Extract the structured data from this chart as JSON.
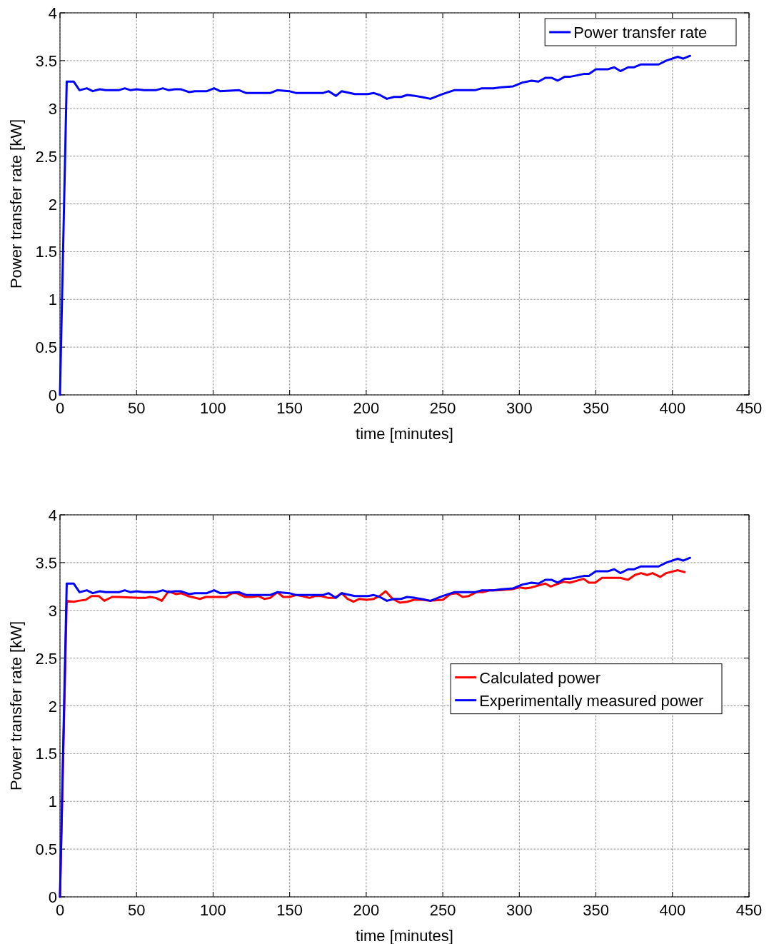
{
  "chart_data": [
    {
      "type": "line",
      "xlabel": "time [minutes]",
      "ylabel": "Power transfer rate [kW]",
      "xlim": [
        0,
        450
      ],
      "ylim": [
        0,
        4
      ],
      "xticks": [
        0,
        50,
        100,
        150,
        200,
        250,
        300,
        350,
        400,
        450
      ],
      "yticks": [
        0,
        0.5,
        1,
        1.5,
        2,
        2.5,
        3,
        3.5,
        4
      ],
      "grid": true,
      "legend": "top right",
      "line_style": "solid",
      "series": [
        {
          "name": "Power transfer rate",
          "color": "#0000ff",
          "x": [
            0,
            4.4,
            9,
            12.8,
            17.5,
            21.4,
            26,
            29.9,
            38.4,
            42.3,
            46.2,
            50,
            54.8,
            62.6,
            67.2,
            71.1,
            75,
            78.9,
            84.4,
            88.2,
            96,
            100.7,
            104.6,
            117,
            121.7,
            137.2,
            141.9,
            149.7,
            154.4,
            159,
            171.6,
            175.5,
            180.2,
            184,
            192.6,
            201.1,
            205,
            208.9,
            213.5,
            218.2,
            222.8,
            226.7,
            232,
            236,
            242,
            250,
            257.5,
            271,
            275.5,
            283,
            288,
            296,
            302,
            308,
            312.5,
            317,
            321,
            325,
            329.5,
            333,
            342,
            345.5,
            350,
            358,
            362,
            366,
            371,
            375,
            379.5,
            391,
            396,
            403.5,
            407,
            411.5
          ],
          "values": [
            0,
            3.28,
            3.28,
            3.19,
            3.21,
            3.18,
            3.2,
            3.19,
            3.19,
            3.21,
            3.19,
            3.2,
            3.19,
            3.19,
            3.21,
            3.19,
            3.2,
            3.2,
            3.17,
            3.18,
            3.18,
            3.21,
            3.18,
            3.19,
            3.16,
            3.16,
            3.19,
            3.18,
            3.16,
            3.16,
            3.16,
            3.18,
            3.13,
            3.18,
            3.15,
            3.15,
            3.16,
            3.14,
            3.1,
            3.12,
            3.12,
            3.14,
            3.13,
            3.12,
            3.1,
            3.15,
            3.19,
            3.19,
            3.21,
            3.21,
            3.22,
            3.23,
            3.27,
            3.29,
            3.28,
            3.32,
            3.32,
            3.29,
            3.33,
            3.33,
            3.36,
            3.36,
            3.41,
            3.41,
            3.43,
            3.39,
            3.43,
            3.43,
            3.46,
            3.46,
            3.5,
            3.54,
            3.52,
            3.55
          ]
        }
      ]
    },
    {
      "type": "line",
      "xlabel": "time [minutes]",
      "ylabel": "Power transfer rate [kW]",
      "xlim": [
        0,
        450
      ],
      "ylim": [
        0,
        4
      ],
      "xticks": [
        0,
        50,
        100,
        150,
        200,
        250,
        300,
        350,
        400,
        450
      ],
      "yticks": [
        0,
        0.5,
        1,
        1.5,
        2,
        2.5,
        3,
        3.5,
        4
      ],
      "grid": true,
      "legend": "right",
      "line_style": "solid",
      "series": [
        {
          "name": "Calculated power",
          "color": "#ff0000",
          "x": [
            0,
            4.4,
            9,
            12,
            16.8,
            20.7,
            25.3,
            29,
            34,
            38.6,
            51,
            55.7,
            58.8,
            62.7,
            66.5,
            70.9,
            75.9,
            79,
            83.6,
            91.4,
            95.3,
            103.8,
            108.5,
            112.4,
            115.5,
            120.9,
            125.6,
            129.5,
            133.4,
            137.3,
            142,
            145.8,
            149.7,
            154.4,
            158.3,
            163,
            166.8,
            170.7,
            175.4,
            179.3,
            184,
            187.8,
            191.7,
            195.6,
            200.3,
            205,
            208.8,
            212.7,
            217.3,
            222,
            226.7,
            231.3,
            237,
            241.5,
            250,
            255,
            259,
            263,
            267,
            272,
            276,
            281,
            285,
            295,
            300.5,
            304,
            308,
            317,
            320.5,
            329,
            333,
            342,
            345.5,
            349.5,
            354,
            362,
            366,
            371,
            375.5,
            379.5,
            383.5,
            387,
            392,
            396,
            403.5,
            408
          ],
          "values": [
            0,
            3.1,
            3.09,
            3.1,
            3.11,
            3.15,
            3.15,
            3.1,
            3.14,
            3.14,
            3.13,
            3.13,
            3.14,
            3.13,
            3.1,
            3.2,
            3.17,
            3.18,
            3.15,
            3.12,
            3.14,
            3.14,
            3.14,
            3.18,
            3.18,
            3.14,
            3.14,
            3.15,
            3.12,
            3.13,
            3.19,
            3.14,
            3.14,
            3.16,
            3.15,
            3.13,
            3.15,
            3.15,
            3.13,
            3.13,
            3.18,
            3.12,
            3.09,
            3.12,
            3.11,
            3.12,
            3.15,
            3.2,
            3.12,
            3.08,
            3.09,
            3.11,
            3.11,
            3.1,
            3.11,
            3.17,
            3.18,
            3.14,
            3.15,
            3.19,
            3.19,
            3.21,
            3.21,
            3.22,
            3.24,
            3.23,
            3.24,
            3.28,
            3.25,
            3.3,
            3.29,
            3.33,
            3.29,
            3.29,
            3.34,
            3.34,
            3.34,
            3.32,
            3.37,
            3.39,
            3.37,
            3.39,
            3.35,
            3.39,
            3.42,
            3.4
          ]
        },
        {
          "name": "Experimentally measured power",
          "color": "#0000ff",
          "x": [
            0,
            4.4,
            9,
            12.8,
            17.5,
            21.4,
            26,
            29.9,
            38.4,
            42.3,
            46.2,
            50,
            54.8,
            62.6,
            67.2,
            71.1,
            75,
            78.9,
            84.4,
            88.2,
            96,
            100.7,
            104.6,
            117,
            121.7,
            137.2,
            141.9,
            149.7,
            154.4,
            159,
            171.6,
            175.5,
            180.2,
            184,
            192.6,
            201.1,
            205,
            208.9,
            213.5,
            218.2,
            222.8,
            226.7,
            232,
            236,
            242,
            250,
            257.5,
            271,
            275.5,
            283,
            288,
            296,
            302,
            308,
            312.5,
            317,
            321,
            325,
            329.5,
            333,
            342,
            345.5,
            350,
            358,
            362,
            366,
            371,
            375,
            379.5,
            391,
            396,
            403.5,
            407,
            411.5
          ],
          "values": [
            0,
            3.28,
            3.28,
            3.19,
            3.21,
            3.18,
            3.2,
            3.19,
            3.19,
            3.21,
            3.19,
            3.2,
            3.19,
            3.19,
            3.21,
            3.19,
            3.2,
            3.2,
            3.17,
            3.18,
            3.18,
            3.21,
            3.18,
            3.19,
            3.16,
            3.16,
            3.19,
            3.18,
            3.16,
            3.16,
            3.16,
            3.18,
            3.13,
            3.18,
            3.15,
            3.15,
            3.16,
            3.14,
            3.1,
            3.12,
            3.12,
            3.14,
            3.13,
            3.12,
            3.1,
            3.15,
            3.19,
            3.19,
            3.21,
            3.21,
            3.22,
            3.23,
            3.27,
            3.29,
            3.28,
            3.32,
            3.32,
            3.29,
            3.33,
            3.33,
            3.36,
            3.36,
            3.41,
            3.41,
            3.43,
            3.39,
            3.43,
            3.43,
            3.46,
            3.46,
            3.5,
            3.54,
            3.52,
            3.55
          ]
        }
      ]
    }
  ]
}
